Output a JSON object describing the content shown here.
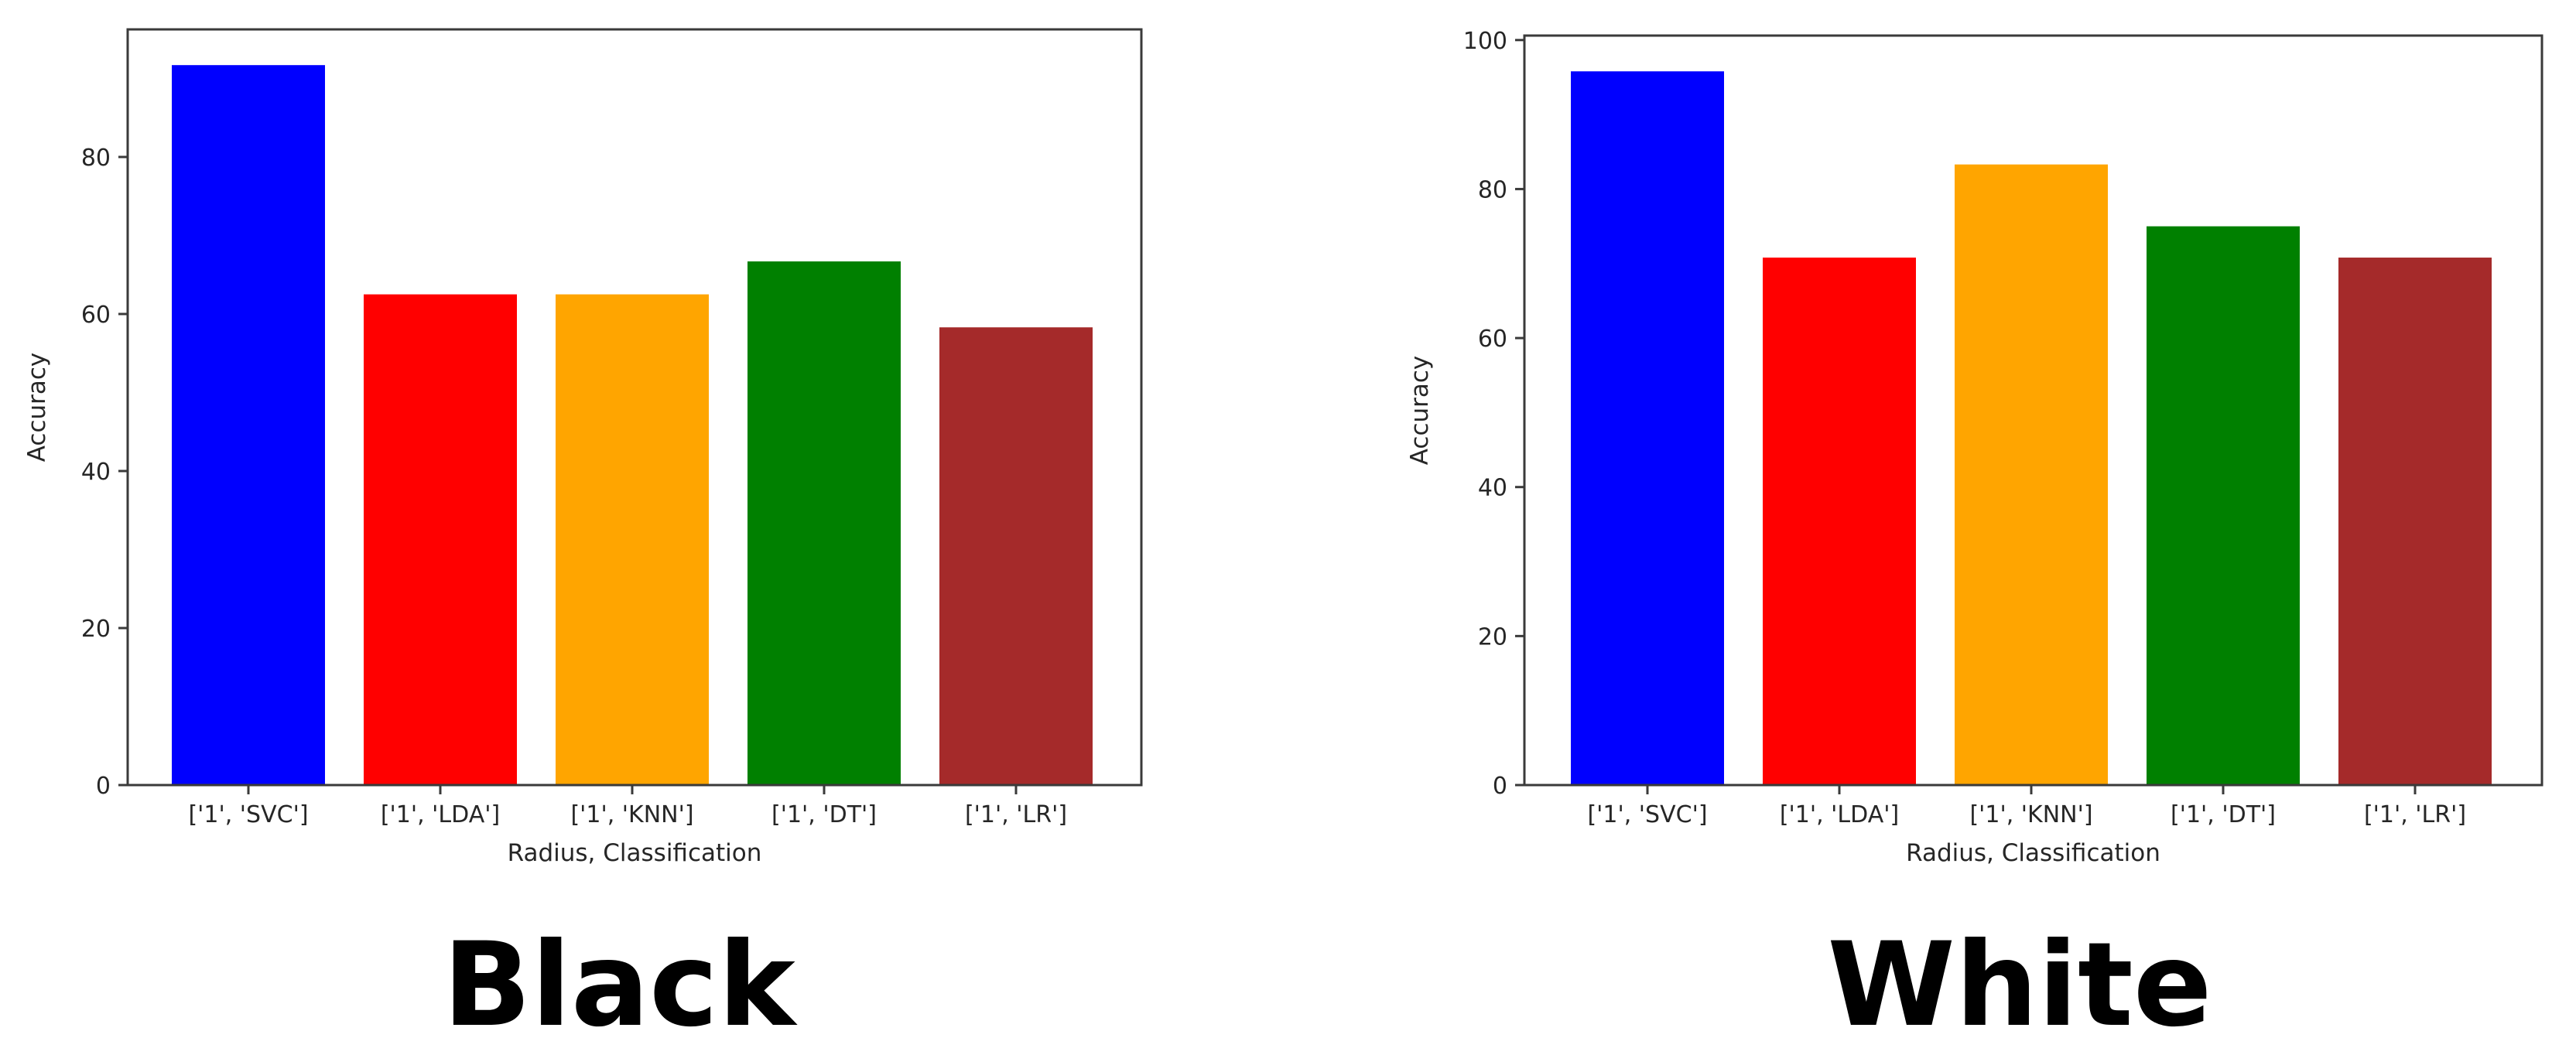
{
  "chart_data": [
    {
      "type": "bar",
      "caption": "Black",
      "categories": [
        "['1', 'SVC']",
        "['1', 'LDA']",
        "['1', 'KNN']",
        "['1', 'DT']",
        "['1', 'LR']"
      ],
      "values": [
        91.7,
        62.5,
        62.5,
        66.7,
        58.3
      ],
      "colors": [
        "#0000ff",
        "#ff0000",
        "#ffa500",
        "#008000",
        "#a52a2a"
      ],
      "xlabel": "Radius, Classification",
      "ylabel": "Accuracy",
      "ylim": [
        0,
        96.25
      ],
      "yticks": [
        0,
        20,
        40,
        60,
        80
      ],
      "grid": false
    },
    {
      "type": "bar",
      "caption": "White",
      "categories": [
        "['1', 'SVC']",
        "['1', 'LDA']",
        "['1', 'KNN']",
        "['1', 'DT']",
        "['1', 'LR']"
      ],
      "values": [
        95.8,
        70.8,
        83.3,
        75.0,
        70.8
      ],
      "colors": [
        "#0000ff",
        "#ff0000",
        "#ffa500",
        "#008000",
        "#a52a2a"
      ],
      "xlabel": "Radius, Classification",
      "ylabel": "Accuracy",
      "ylim": [
        0,
        100.6
      ],
      "yticks": [
        0,
        20,
        40,
        60,
        80,
        100
      ],
      "grid": false
    }
  ]
}
